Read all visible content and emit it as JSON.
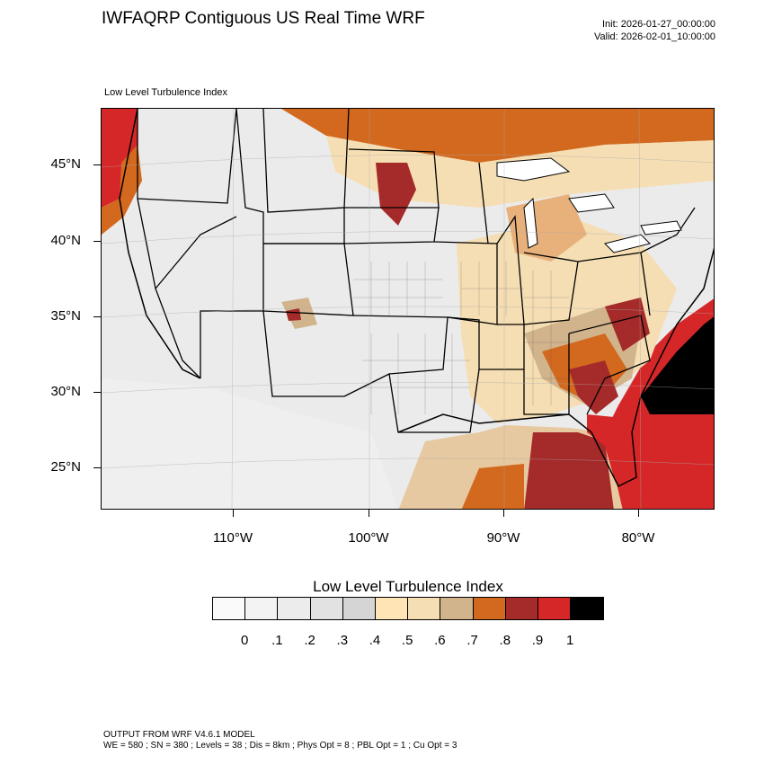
{
  "header": {
    "title": "IWFAQRP Contiguous US Real Time WRF",
    "init": "Init: 2026-01-27_00:00:00",
    "valid": "Valid: 2026-02-01_10:00:00",
    "subtitle": "Low Level Turbulence Index"
  },
  "axes": {
    "lat_labels": [
      "45°N",
      "40°N",
      "35°N",
      "30°N",
      "25°N"
    ],
    "lon_labels": [
      "110°W",
      "100°W",
      "90°W",
      "80°W"
    ]
  },
  "colorbar": {
    "title": "Low Level Turbulence Index",
    "colors": [
      "#fafafa",
      "#f3f3f3",
      "#ececec",
      "#e2e2e2",
      "#d5d5d5",
      "#ffe4b5",
      "#f5deb3",
      "#d2b48c",
      "#d2691e",
      "#a52a2a",
      "#d62728",
      "#000000"
    ],
    "labels": [
      "0",
      ".1",
      ".2",
      ".3",
      ".4",
      ".5",
      ".6",
      ".7",
      ".8",
      ".9",
      "1"
    ]
  },
  "footer": {
    "line1": "OUTPUT FROM WRF V4.6.1 MODEL",
    "line2": "WE = 580 ; SN = 380 ; Levels = 38 ; Dis = 8km ; Phys Opt = 8 ; PBL Opt = 1 ; Cu Opt = 3"
  }
}
